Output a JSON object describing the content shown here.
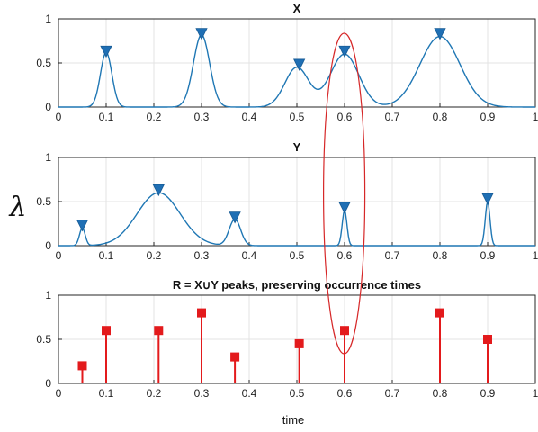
{
  "figure": {
    "shared_ylabel": "λ",
    "xlabel": "time"
  },
  "chart_data": [
    {
      "type": "line",
      "title": "X",
      "xlim": [
        0,
        1
      ],
      "ylim": [
        0,
        1
      ],
      "xticks": [
        "0",
        "0.1",
        "0.2",
        "0.3",
        "0.4",
        "0.5",
        "0.6",
        "0.7",
        "0.8",
        "0.9",
        "1"
      ],
      "yticks": [
        "0",
        "0.5",
        "1"
      ],
      "grid": true,
      "line_color": "#1f77b4",
      "components": [
        {
          "mu": 0.1,
          "sigma": 0.012,
          "amp": 0.62
        },
        {
          "mu": 0.3,
          "sigma": 0.017,
          "amp": 0.82
        },
        {
          "mu": 0.5,
          "sigma": 0.025,
          "amp": 0.45
        },
        {
          "mu": 0.6,
          "sigma": 0.03,
          "amp": 0.6
        },
        {
          "mu": 0.8,
          "sigma": 0.042,
          "amp": 0.8
        }
      ],
      "peaks": [
        {
          "x": 0.1,
          "y": 0.62
        },
        {
          "x": 0.3,
          "y": 0.82
        },
        {
          "x": 0.505,
          "y": 0.47
        },
        {
          "x": 0.6,
          "y": 0.62
        },
        {
          "x": 0.8,
          "y": 0.82
        }
      ]
    },
    {
      "type": "line",
      "title": "Y",
      "xlim": [
        0,
        1
      ],
      "ylim": [
        0,
        1
      ],
      "xticks": [
        "0",
        "0.1",
        "0.2",
        "0.3",
        "0.4",
        "0.5",
        "0.6",
        "0.7",
        "0.8",
        "0.9",
        "1"
      ],
      "yticks": [
        "0",
        "0.5",
        "1"
      ],
      "grid": true,
      "line_color": "#1f77b4",
      "components": [
        {
          "mu": 0.05,
          "sigma": 0.006,
          "amp": 0.2
        },
        {
          "mu": 0.21,
          "sigma": 0.045,
          "amp": 0.6
        },
        {
          "mu": 0.37,
          "sigma": 0.012,
          "amp": 0.3
        },
        {
          "mu": 0.6,
          "sigma": 0.005,
          "amp": 0.4
        },
        {
          "mu": 0.9,
          "sigma": 0.005,
          "amp": 0.5
        }
      ],
      "peaks": [
        {
          "x": 0.05,
          "y": 0.22
        },
        {
          "x": 0.21,
          "y": 0.62
        },
        {
          "x": 0.37,
          "y": 0.31
        },
        {
          "x": 0.6,
          "y": 0.42
        },
        {
          "x": 0.9,
          "y": 0.52
        }
      ]
    },
    {
      "type": "stem",
      "title": "R = X∪Y peaks, preserving occurrence times",
      "xlim": [
        0,
        1
      ],
      "ylim": [
        0,
        1
      ],
      "xticks": [
        "0",
        "0.1",
        "0.2",
        "0.3",
        "0.4",
        "0.5",
        "0.6",
        "0.7",
        "0.8",
        "0.9",
        "1"
      ],
      "yticks": [
        "0",
        "0.5",
        "1"
      ],
      "grid": true,
      "stem_color": "#e31a1c",
      "points": [
        {
          "x": 0.05,
          "y": 0.2
        },
        {
          "x": 0.1,
          "y": 0.6
        },
        {
          "x": 0.21,
          "y": 0.6
        },
        {
          "x": 0.3,
          "y": 0.8
        },
        {
          "x": 0.37,
          "y": 0.3
        },
        {
          "x": 0.505,
          "y": 0.45
        },
        {
          "x": 0.6,
          "y": 0.6
        },
        {
          "x": 0.8,
          "y": 0.8
        },
        {
          "x": 0.9,
          "y": 0.5
        }
      ]
    }
  ],
  "annotation": {
    "type": "ellipse",
    "x_center": 0.62,
    "color": "#d62728"
  }
}
